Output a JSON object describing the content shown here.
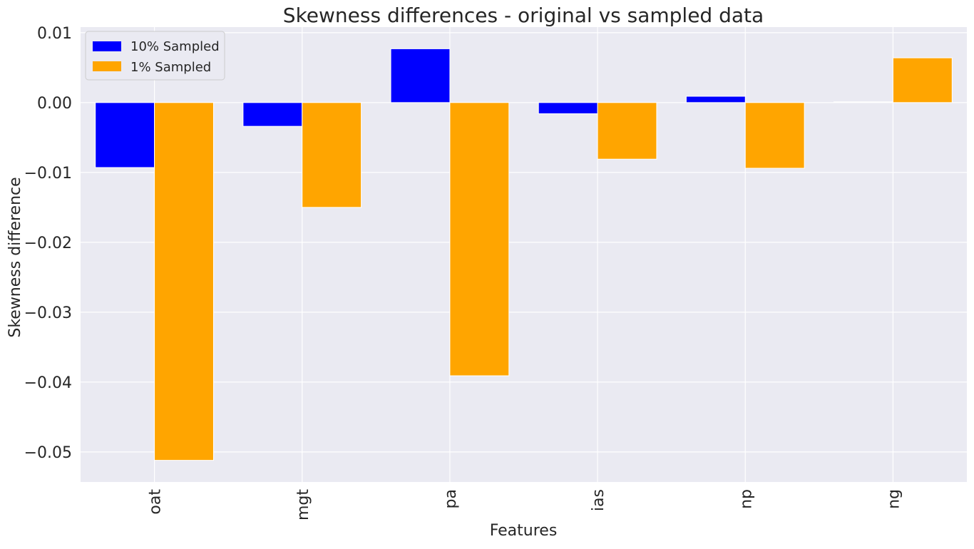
{
  "chart_data": {
    "type": "bar",
    "title": "Skewness differences - original vs sampled data",
    "xlabel": "Features",
    "ylabel": "Skewness difference",
    "categories": [
      "oat",
      "mgt",
      "pa",
      "ias",
      "np",
      "ng"
    ],
    "series": [
      {
        "name": "10% Sampled",
        "color": "#0000ff",
        "values": [
          -0.0093,
          -0.0034,
          0.0077,
          -0.0016,
          0.0009,
          0.0001
        ]
      },
      {
        "name": "1% Sampled",
        "color": "#ffa500",
        "values": [
          -0.0512,
          -0.015,
          -0.0391,
          -0.0081,
          -0.0094,
          0.0064
        ]
      }
    ],
    "ylim": [
      -0.0543,
      0.0108
    ],
    "yticks": [
      0.01,
      0.0,
      -0.01,
      -0.02,
      -0.03,
      -0.04,
      -0.05
    ],
    "ytick_labels": [
      "0.01",
      "0.00",
      "−0.01",
      "−0.02",
      "−0.03",
      "−0.04",
      "−0.05"
    ],
    "grid": true,
    "legend_position": "top-left",
    "background_color": "#eaeaf2",
    "grid_color": "#ffffff"
  }
}
